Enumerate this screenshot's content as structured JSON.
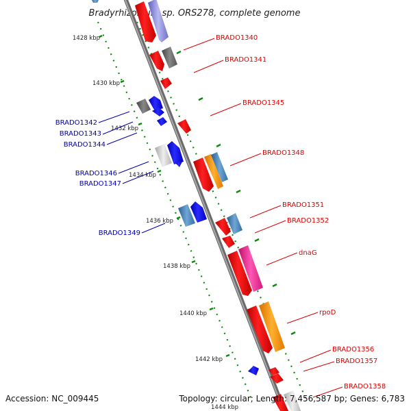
{
  "title": "Bradyrhizobium sp. ORS278, complete genome",
  "footer": {
    "accession": "Accession: NC_009445",
    "topology": "Topology: circular; Length: 7,456,587 bp; Genes: 6,783"
  },
  "colors": {
    "forward_label": "#dd0000",
    "reverse_label": "#0000aa",
    "backbone": "#8a8a8a",
    "tick_dots": "#118811"
  },
  "scale_ticks": [
    "1428 kbp",
    "1430 kbp",
    "1432 kbp",
    "1434 kbp",
    "1436 kbp",
    "1438 kbp",
    "1440 kbp",
    "1442 kbp",
    "1444 kbp"
  ],
  "gene_labels": {
    "forward": [
      "BRADO1340",
      "BRADO1341",
      "BRADO1345",
      "BRADO1348",
      "BRADO1351",
      "BRADO1352",
      "dnaG",
      "rpoD",
      "BRADO1356",
      "BRADO1357",
      "BRADO1358"
    ],
    "reverse": [
      "BRADO1342",
      "BRADO1343",
      "BRADO1344",
      "BRADO1346",
      "BRADO1347",
      "BRADO1349"
    ]
  }
}
